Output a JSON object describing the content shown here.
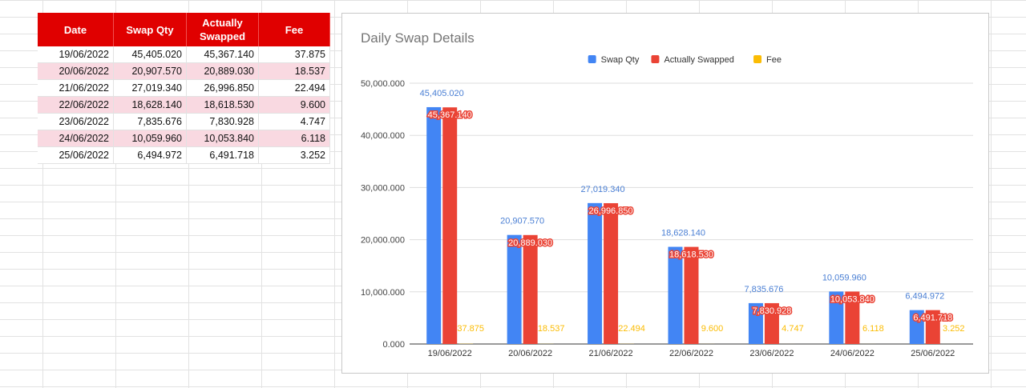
{
  "table": {
    "headers": [
      "Date",
      "Swap Qty",
      "Actually Swapped",
      "Fee"
    ],
    "header_lines": {
      "date": "Date",
      "swap_qty": "Swap Qty",
      "actually_line1": "Actually",
      "actually_line2": "Swapped",
      "fee": "Fee"
    },
    "rows": [
      [
        "19/06/2022",
        "45,405.020",
        "45,367.140",
        "37.875"
      ],
      [
        "20/06/2022",
        "20,907.570",
        "20,889.030",
        "18.537"
      ],
      [
        "21/06/2022",
        "27,019.340",
        "26,996.850",
        "22.494"
      ],
      [
        "22/06/2022",
        "18,628.140",
        "18,618.530",
        "9.600"
      ],
      [
        "23/06/2022",
        "7,835.676",
        "7,830.928",
        "4.747"
      ],
      [
        "24/06/2022",
        "10,059.960",
        "10,053.840",
        "6.118"
      ],
      [
        "25/06/2022",
        "6,494.972",
        "6,491.718",
        "3.252"
      ]
    ]
  },
  "colors": {
    "header_bg": "#e00000",
    "alt_row": "#f9d9e1",
    "swap_qty": "#4285f4",
    "actually_swapped": "#ea4335",
    "fee": "#fbbc04"
  },
  "chart_data": {
    "type": "bar",
    "title": "Daily Swap Details",
    "xlabel": "",
    "ylabel": "",
    "ylim": [
      0,
      50000
    ],
    "yticks": [
      "0.000",
      "10,000.000",
      "20,000.000",
      "30,000.000",
      "40,000.000",
      "50,000.000"
    ],
    "ytick_values": [
      0,
      10000,
      20000,
      30000,
      40000,
      50000
    ],
    "legend_position": "top",
    "grid": true,
    "categories": [
      "19/06/2022",
      "20/06/2022",
      "21/06/2022",
      "22/06/2022",
      "23/06/2022",
      "24/06/2022",
      "25/06/2022"
    ],
    "series": [
      {
        "name": "Swap Qty",
        "color": "#4285f4",
        "values": [
          45405.02,
          20907.57,
          27019.34,
          18628.14,
          7835.676,
          10059.96,
          6494.972
        ],
        "labels": [
          "45,405.020",
          "20,907.570",
          "27,019.340",
          "18,628.140",
          "7,835.676",
          "10,059.960",
          "6,494.972"
        ]
      },
      {
        "name": "Actually Swapped",
        "color": "#ea4335",
        "values": [
          45367.14,
          20889.03,
          26996.85,
          18618.53,
          7830.928,
          10053.84,
          6491.718
        ],
        "labels": [
          "45,367.140",
          "20,889.030",
          "26,996.850",
          "18,618.530",
          "7,830.928",
          "10,053.840",
          "6,491.718"
        ]
      },
      {
        "name": "Fee",
        "color": "#fbbc04",
        "values": [
          37.875,
          18.537,
          22.494,
          9.6,
          4.747,
          6.118,
          3.252
        ],
        "labels": [
          "37.875",
          "18.537",
          "22.494",
          "9.600",
          "4.747",
          "6.118",
          "3.252"
        ]
      }
    ]
  }
}
